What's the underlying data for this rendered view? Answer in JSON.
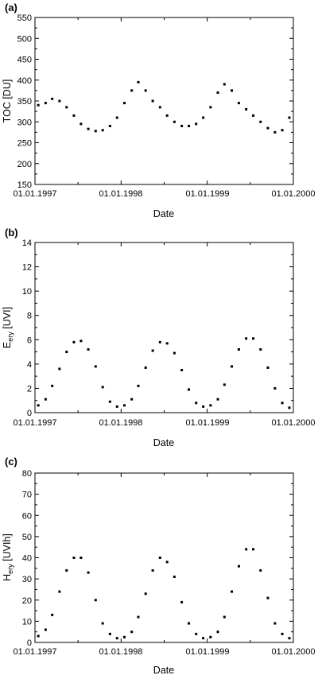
{
  "chart_data": [
    {
      "type": "scatter",
      "panel_label": "(a)",
      "xlabel": "Date",
      "ylabel": "TOC [DU]",
      "ylabel_main": "",
      "ylabel_sub": "",
      "ylabel_rest": "",
      "x_tick_labels": [
        "01.01.1997",
        "01.01.1998",
        "01.01.1999",
        "01.01.2000"
      ],
      "xlim": [
        "1997-01-01",
        "2000-01-01"
      ],
      "ylim": [
        150,
        550
      ],
      "yticks": [
        150,
        200,
        250,
        300,
        350,
        400,
        450,
        500,
        550
      ],
      "y_tick_labels": [
        "150",
        "200",
        "250",
        "300",
        "350",
        "400",
        "450",
        "500",
        "550"
      ],
      "grid": false,
      "series": [
        {
          "marker": "square",
          "color": "#000000",
          "description_points": "daily values, monthly summary (date, typical value)",
          "points": [
            [
              "1997-01-15",
              340
            ],
            [
              "1997-02-15",
              345
            ],
            [
              "1997-03-15",
              355
            ],
            [
              "1997-04-15",
              350
            ],
            [
              "1997-05-15",
              335
            ],
            [
              "1997-06-15",
              315
            ],
            [
              "1997-07-15",
              295
            ],
            [
              "1997-08-15",
              283
            ],
            [
              "1997-09-15",
              278
            ],
            [
              "1997-10-15",
              280
            ],
            [
              "1997-11-15",
              290
            ],
            [
              "1997-12-15",
              310
            ],
            [
              "1998-01-15",
              345
            ],
            [
              "1998-02-15",
              375
            ],
            [
              "1998-03-15",
              395
            ],
            [
              "1998-04-15",
              375
            ],
            [
              "1998-05-15",
              350
            ],
            [
              "1998-06-15",
              335
            ],
            [
              "1998-07-15",
              315
            ],
            [
              "1998-08-15",
              300
            ],
            [
              "1998-09-15",
              290
            ],
            [
              "1998-10-15",
              290
            ],
            [
              "1998-11-15",
              295
            ],
            [
              "1998-12-15",
              310
            ],
            [
              "1999-01-15",
              335
            ],
            [
              "1999-02-15",
              370
            ],
            [
              "1999-03-15",
              390
            ],
            [
              "1999-04-15",
              375
            ],
            [
              "1999-05-15",
              345
            ],
            [
              "1999-06-15",
              330
            ],
            [
              "1999-07-15",
              315
            ],
            [
              "1999-08-15",
              300
            ],
            [
              "1999-09-15",
              285
            ],
            [
              "1999-10-15",
              275
            ],
            [
              "1999-11-15",
              280
            ],
            [
              "1999-12-15",
              310
            ]
          ]
        }
      ]
    },
    {
      "type": "scatter",
      "panel_label": "(b)",
      "xlabel": "Date",
      "ylabel": "",
      "ylabel_main": "E",
      "ylabel_sub": "ery",
      "ylabel_rest": " [UVI]",
      "x_tick_labels": [
        "01.01.1997",
        "01.01.1998",
        "01.01.1999",
        "01.01.2000"
      ],
      "xlim": [
        "1997-01-01",
        "2000-01-01"
      ],
      "ylim": [
        0,
        14
      ],
      "yticks": [
        0,
        2,
        4,
        6,
        8,
        10,
        12,
        14
      ],
      "y_tick_labels": [
        "0",
        "2",
        "4",
        "6",
        "8",
        "10",
        "12",
        "14"
      ],
      "grid": false,
      "series": [
        {
          "marker": "square",
          "color": "#000000",
          "description_points": "daily values, monthly summary (date, typical value)",
          "points": [
            [
              "1997-01-15",
              0.6
            ],
            [
              "1997-02-15",
              1.1
            ],
            [
              "1997-03-15",
              2.2
            ],
            [
              "1997-04-15",
              3.6
            ],
            [
              "1997-05-15",
              5.0
            ],
            [
              "1997-06-15",
              5.8
            ],
            [
              "1997-07-15",
              5.9
            ],
            [
              "1997-08-15",
              5.2
            ],
            [
              "1997-09-15",
              3.8
            ],
            [
              "1997-10-15",
              2.1
            ],
            [
              "1997-11-15",
              0.9
            ],
            [
              "1997-12-15",
              0.5
            ],
            [
              "1998-01-15",
              0.6
            ],
            [
              "1998-02-15",
              1.1
            ],
            [
              "1998-03-15",
              2.2
            ],
            [
              "1998-04-15",
              3.7
            ],
            [
              "1998-05-15",
              5.1
            ],
            [
              "1998-06-15",
              5.8
            ],
            [
              "1998-07-15",
              5.7
            ],
            [
              "1998-08-15",
              4.9
            ],
            [
              "1998-09-15",
              3.5
            ],
            [
              "1998-10-15",
              1.9
            ],
            [
              "1998-11-15",
              0.8
            ],
            [
              "1998-12-15",
              0.5
            ],
            [
              "1999-01-15",
              0.6
            ],
            [
              "1999-02-15",
              1.1
            ],
            [
              "1999-03-15",
              2.3
            ],
            [
              "1999-04-15",
              3.8
            ],
            [
              "1999-05-15",
              5.2
            ],
            [
              "1999-06-15",
              6.1
            ],
            [
              "1999-07-15",
              6.1
            ],
            [
              "1999-08-15",
              5.2
            ],
            [
              "1999-09-15",
              3.7
            ],
            [
              "1999-10-15",
              2.0
            ],
            [
              "1999-11-15",
              0.8
            ],
            [
              "1999-12-15",
              0.4
            ]
          ]
        }
      ]
    },
    {
      "type": "scatter",
      "panel_label": "(c)",
      "xlabel": "Date",
      "ylabel": "",
      "ylabel_main": "H",
      "ylabel_sub": "ery",
      "ylabel_rest": " [UVIh]",
      "x_tick_labels": [
        "01.01.1997",
        "01.01.1998",
        "01.01.1999",
        "01.01.2000"
      ],
      "xlim": [
        "1997-01-01",
        "2000-01-01"
      ],
      "ylim": [
        0,
        80
      ],
      "yticks": [
        0,
        10,
        20,
        30,
        40,
        50,
        60,
        70,
        80
      ],
      "y_tick_labels": [
        "0",
        "10",
        "20",
        "30",
        "40",
        "50",
        "60",
        "70",
        "80"
      ],
      "grid": false,
      "series": [
        {
          "marker": "square",
          "color": "#000000",
          "description_points": "daily values, monthly summary (date, typical value)",
          "points": [
            [
              "1997-01-15",
              3
            ],
            [
              "1997-02-15",
              6
            ],
            [
              "1997-03-15",
              13
            ],
            [
              "1997-04-15",
              24
            ],
            [
              "1997-05-15",
              34
            ],
            [
              "1997-06-15",
              40
            ],
            [
              "1997-07-15",
              40
            ],
            [
              "1997-08-15",
              33
            ],
            [
              "1997-09-15",
              20
            ],
            [
              "1997-10-15",
              9
            ],
            [
              "1997-11-15",
              4
            ],
            [
              "1997-12-15",
              2
            ],
            [
              "1998-01-15",
              2.5
            ],
            [
              "1998-02-15",
              5
            ],
            [
              "1998-03-15",
              12
            ],
            [
              "1998-04-15",
              23
            ],
            [
              "1998-05-15",
              34
            ],
            [
              "1998-06-15",
              40
            ],
            [
              "1998-07-15",
              38
            ],
            [
              "1998-08-15",
              31
            ],
            [
              "1998-09-15",
              19
            ],
            [
              "1998-10-15",
              9
            ],
            [
              "1998-11-15",
              4
            ],
            [
              "1998-12-15",
              2
            ],
            [
              "1999-01-15",
              2.5
            ],
            [
              "1999-02-15",
              5
            ],
            [
              "1999-03-15",
              12
            ],
            [
              "1999-04-15",
              24
            ],
            [
              "1999-05-15",
              36
            ],
            [
              "1999-06-15",
              44
            ],
            [
              "1999-07-15",
              44
            ],
            [
              "1999-08-15",
              34
            ],
            [
              "1999-09-15",
              21
            ],
            [
              "1999-10-15",
              9
            ],
            [
              "1999-11-15",
              4
            ],
            [
              "1999-12-15",
              2
            ]
          ]
        }
      ]
    }
  ]
}
